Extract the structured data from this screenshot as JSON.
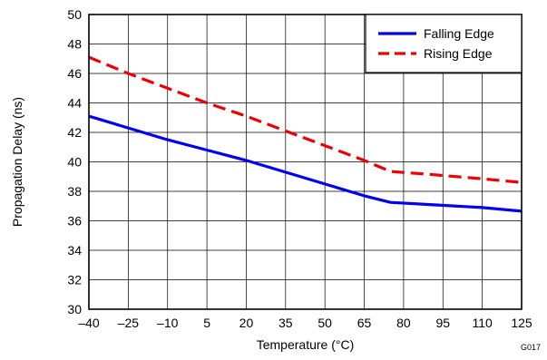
{
  "chart_data": {
    "type": "line",
    "xlabel": "Temperature (°C)",
    "ylabel": "Propagation Delay (ns)",
    "xlim": [
      -40,
      125
    ],
    "ylim": [
      30,
      50
    ],
    "xticks": [
      -40,
      -25,
      -10,
      5,
      20,
      35,
      50,
      65,
      80,
      95,
      110,
      125
    ],
    "xtick_labels": [
      "–40",
      "–25",
      "–10",
      "5",
      "20",
      "35",
      "50",
      "65",
      "80",
      "95",
      "110",
      "125"
    ],
    "yticks": [
      30,
      32,
      34,
      36,
      38,
      40,
      42,
      44,
      46,
      48,
      50
    ],
    "grid": true,
    "legend": "top-right",
    "series": [
      {
        "name": "Falling Edge",
        "color": "#0000ee",
        "style": "solid",
        "x": [
          -40,
          -25,
          -10,
          5,
          20,
          35,
          50,
          65,
          75,
          90,
          110,
          125
        ],
        "y": [
          43.1,
          42.3,
          41.5,
          40.8,
          40.1,
          39.3,
          38.5,
          37.7,
          37.25,
          37.1,
          36.9,
          36.65
        ]
      },
      {
        "name": "Rising Edge",
        "color": "#ee0000",
        "style": "dashed",
        "x": [
          -40,
          -25,
          -10,
          5,
          20,
          35,
          50,
          65,
          75,
          90,
          110,
          125
        ],
        "y": [
          47.1,
          46.0,
          45.0,
          44.0,
          43.1,
          42.1,
          41.1,
          40.1,
          39.35,
          39.15,
          38.85,
          38.6
        ]
      }
    ],
    "annotation": "G017"
  }
}
